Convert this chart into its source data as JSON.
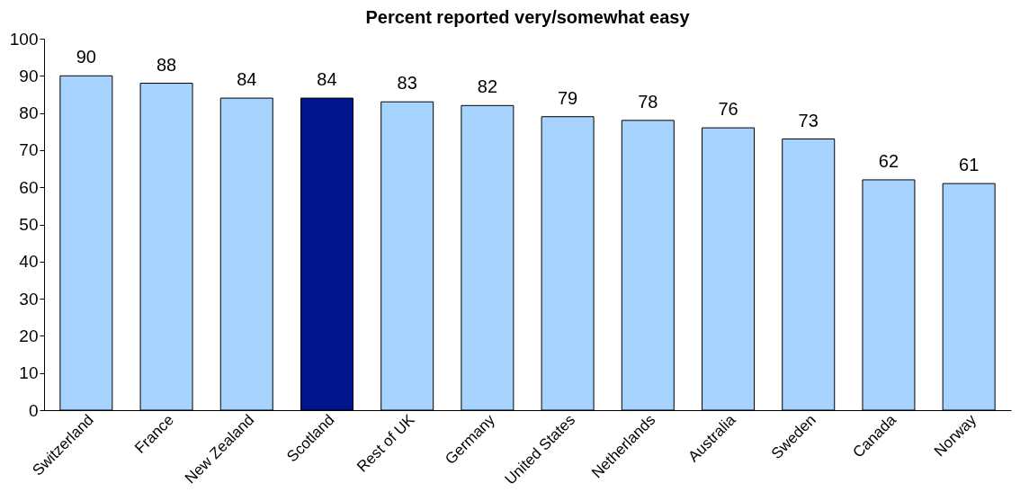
{
  "chart_data": {
    "type": "bar",
    "title": "Percent reported very/somewhat easy",
    "categories": [
      "Switzerland",
      "France",
      "New Zealand",
      "Scotland",
      "Rest of UK",
      "Germany",
      "United States",
      "Netherlands",
      "Australia",
      "Sweden",
      "Canada",
      "Norway"
    ],
    "values": [
      90,
      88,
      84,
      84,
      83,
      82,
      79,
      78,
      76,
      73,
      62,
      61
    ],
    "colors": [
      "#a6d4ff",
      "#a6d4ff",
      "#a6d4ff",
      "#00148c",
      "#a6d4ff",
      "#a6d4ff",
      "#a6d4ff",
      "#a6d4ff",
      "#a6d4ff",
      "#a6d4ff",
      "#a6d4ff",
      "#a6d4ff"
    ],
    "ylim": [
      0,
      100
    ],
    "yticks": [
      0,
      10,
      20,
      30,
      40,
      50,
      60,
      70,
      80,
      90,
      100
    ],
    "grid": false,
    "data_labels": true
  }
}
